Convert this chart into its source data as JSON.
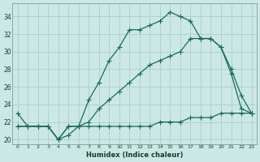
{
  "xlabel": "Humidex (Indice chaleur)",
  "bg_color": "#cce8e4",
  "grid_color": "#aacfcc",
  "line_color": "#1a6b5a",
  "line1_x": [
    0,
    1,
    2,
    3,
    4,
    5,
    6,
    7,
    8,
    9,
    10,
    11,
    12,
    13,
    14,
    15,
    16,
    17,
    18,
    19,
    20,
    21,
    22,
    23
  ],
  "line1_y": [
    23.0,
    21.5,
    21.5,
    21.5,
    20.0,
    20.5,
    21.5,
    24.5,
    26.5,
    29.0,
    30.5,
    32.5,
    32.5,
    33.0,
    33.5,
    34.5,
    34.0,
    33.5,
    31.5,
    31.5,
    30.5,
    27.5,
    23.5,
    23.0
  ],
  "line2_x": [
    0,
    1,
    2,
    3,
    4,
    5,
    6,
    7,
    8,
    9,
    10,
    11,
    12,
    13,
    14,
    15,
    16,
    17,
    18,
    19,
    20,
    21,
    22,
    23
  ],
  "line2_y": [
    21.5,
    21.5,
    21.5,
    21.5,
    20.0,
    21.5,
    21.5,
    22.0,
    23.5,
    24.5,
    25.5,
    26.5,
    27.5,
    28.5,
    29.0,
    29.5,
    30.0,
    31.5,
    31.5,
    31.5,
    30.5,
    28.0,
    25.0,
    23.0
  ],
  "line3_x": [
    0,
    1,
    2,
    3,
    4,
    5,
    6,
    7,
    8,
    9,
    10,
    11,
    12,
    13,
    14,
    15,
    16,
    17,
    18,
    19,
    20,
    21,
    22,
    23
  ],
  "line3_y": [
    21.5,
    21.5,
    21.5,
    21.5,
    20.0,
    21.5,
    21.5,
    21.5,
    21.5,
    21.5,
    21.5,
    21.5,
    21.5,
    21.5,
    22.0,
    22.0,
    22.0,
    22.5,
    22.5,
    22.5,
    23.0,
    23.0,
    23.0,
    23.0
  ],
  "ylim": [
    19.5,
    35.5
  ],
  "xlim": [
    -0.5,
    23.5
  ],
  "yticks": [
    20,
    22,
    24,
    26,
    28,
    30,
    32,
    34
  ],
  "xticks": [
    0,
    1,
    2,
    3,
    4,
    5,
    6,
    7,
    8,
    9,
    10,
    11,
    12,
    13,
    14,
    15,
    16,
    17,
    18,
    19,
    20,
    21,
    22,
    23
  ]
}
